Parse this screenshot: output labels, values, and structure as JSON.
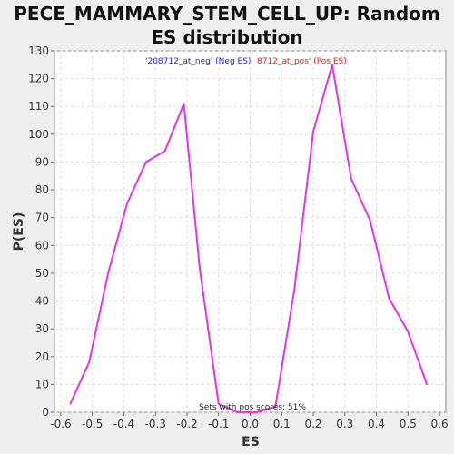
{
  "chart_data": {
    "type": "line",
    "title": "PECE_MAMMARY_STEM_CELL_UP: Random ES distribution",
    "xlabel": "ES",
    "ylabel": "P(ES)",
    "xlim": [
      -0.62,
      0.62
    ],
    "ylim": [
      0,
      130
    ],
    "xticks": [
      "-0.6",
      "-0.5",
      "-0.4",
      "-0.3",
      "-0.2",
      "-0.1",
      "0.0",
      "0.1",
      "0.2",
      "0.3",
      "0.4",
      "0.5",
      "0.6"
    ],
    "yticks": [
      "0",
      "10",
      "20",
      "30",
      "40",
      "50",
      "60",
      "70",
      "80",
      "90",
      "100",
      "110",
      "120",
      "130"
    ],
    "grid": true,
    "series": [
      {
        "color": "#e633e6",
        "x": [
          -0.57,
          -0.51,
          -0.45,
          -0.39,
          -0.33,
          -0.27,
          -0.21,
          -0.16,
          -0.1,
          -0.04,
          0.02,
          0.08,
          0.14,
          0.2,
          0.26,
          0.32,
          0.38,
          0.44,
          0.5,
          0.56
        ],
        "y": [
          3,
          18,
          50,
          75,
          90,
          94,
          111,
          52,
          3,
          0,
          0,
          2,
          44,
          101,
          125,
          84,
          69,
          41,
          29,
          10
        ]
      }
    ],
    "legend": {
      "neg_label": "'208712_at_neg' (Neg ES)",
      "pos_label": "8712_at_pos' (Pos ES)",
      "neg_color": "#2323e6",
      "pos_color": "#e62323"
    },
    "annotation": "Sets with pos scores: 51%"
  }
}
